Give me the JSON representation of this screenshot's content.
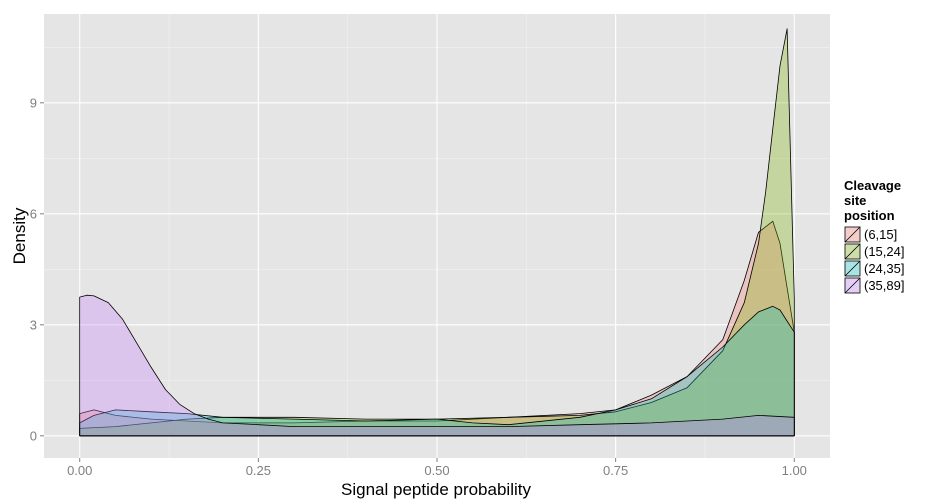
{
  "chart_data": {
    "type": "area",
    "title": "",
    "xlabel": "Signal peptide probability",
    "ylabel": "Density",
    "xlim": [
      -0.05,
      1.05
    ],
    "ylim": [
      -0.6,
      11.4
    ],
    "x_ticks": [
      0.0,
      0.25,
      0.5,
      0.75,
      1.0
    ],
    "x_tick_labels": [
      "0.00",
      "0.25",
      "0.50",
      "0.75",
      "1.00"
    ],
    "y_ticks": [
      0,
      3,
      6,
      9
    ],
    "y_tick_labels": [
      "0",
      "3",
      "6",
      "9"
    ],
    "grid": true,
    "legend": {
      "title": [
        "Cleavage",
        "site",
        "position"
      ],
      "placement": "right"
    },
    "series": [
      {
        "name": "(6,15]",
        "color": "#f8766d",
        "x": [
          0.0,
          0.02,
          0.05,
          0.1,
          0.15,
          0.2,
          0.3,
          0.4,
          0.5,
          0.6,
          0.7,
          0.75,
          0.8,
          0.85,
          0.9,
          0.93,
          0.95,
          0.97,
          0.98,
          0.99,
          1.0
        ],
        "y": [
          0.6,
          0.7,
          0.55,
          0.45,
          0.4,
          0.35,
          0.35,
          0.4,
          0.4,
          0.5,
          0.6,
          0.7,
          1.1,
          1.6,
          2.6,
          4.2,
          5.5,
          5.8,
          5.2,
          4.0,
          2.8
        ]
      },
      {
        "name": "(15,24]",
        "color": "#7cae00",
        "x": [
          0.0,
          0.05,
          0.1,
          0.15,
          0.2,
          0.3,
          0.4,
          0.5,
          0.6,
          0.7,
          0.75,
          0.8,
          0.85,
          0.9,
          0.93,
          0.95,
          0.96,
          0.97,
          0.98,
          0.99,
          1.0
        ],
        "y": [
          0.2,
          0.25,
          0.35,
          0.45,
          0.5,
          0.5,
          0.45,
          0.45,
          0.5,
          0.55,
          0.65,
          0.9,
          1.3,
          2.3,
          3.6,
          5.2,
          6.6,
          8.3,
          10.0,
          11.0,
          3.7
        ]
      },
      {
        "name": "(24,35]",
        "color": "#00bfc4",
        "x": [
          0.0,
          0.02,
          0.05,
          0.1,
          0.15,
          0.2,
          0.3,
          0.4,
          0.5,
          0.55,
          0.6,
          0.7,
          0.75,
          0.8,
          0.85,
          0.9,
          0.93,
          0.95,
          0.97,
          0.98,
          0.99,
          1.0
        ],
        "y": [
          0.35,
          0.55,
          0.7,
          0.65,
          0.6,
          0.5,
          0.45,
          0.4,
          0.45,
          0.35,
          0.3,
          0.5,
          0.7,
          1.0,
          1.6,
          2.4,
          3.0,
          3.35,
          3.5,
          3.4,
          3.1,
          2.8
        ]
      },
      {
        "name": "(35,89]",
        "color": "#c77cff",
        "x": [
          0.0,
          0.01,
          0.02,
          0.04,
          0.06,
          0.08,
          0.1,
          0.12,
          0.14,
          0.16,
          0.18,
          0.2,
          0.25,
          0.3,
          0.4,
          0.5,
          0.6,
          0.7,
          0.8,
          0.9,
          0.95,
          1.0
        ],
        "y": [
          3.75,
          3.8,
          3.78,
          3.6,
          3.15,
          2.5,
          1.85,
          1.25,
          0.85,
          0.6,
          0.45,
          0.35,
          0.3,
          0.25,
          0.25,
          0.25,
          0.25,
          0.3,
          0.35,
          0.45,
          0.55,
          0.5
        ]
      }
    ]
  }
}
